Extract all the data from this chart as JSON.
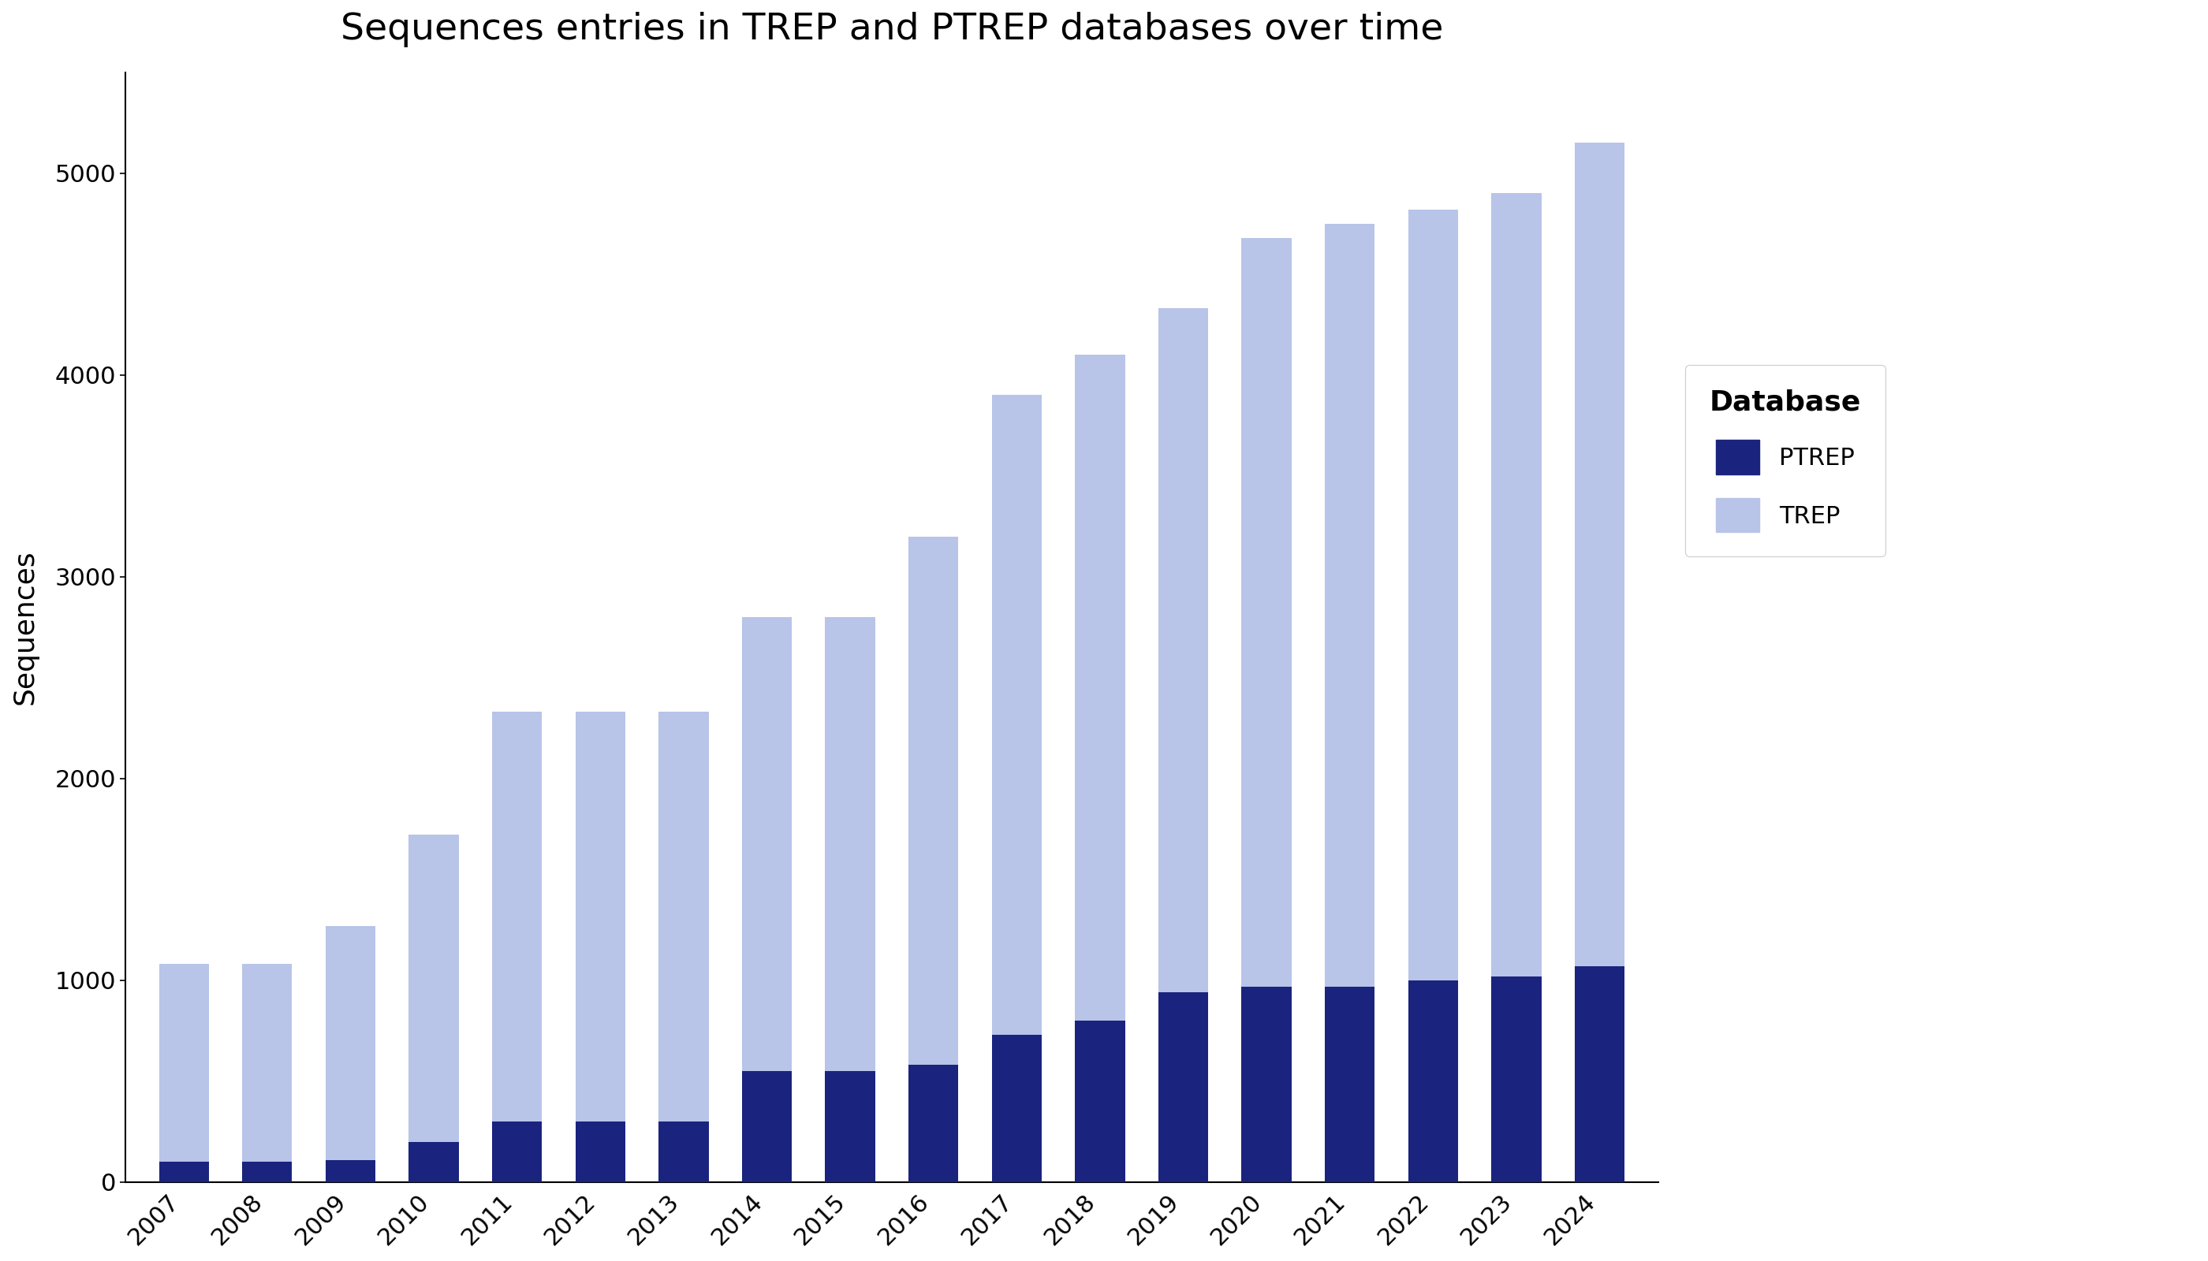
{
  "title": "Sequences entries in TREP and PTREP databases over time",
  "years": [
    "2007",
    "2008",
    "2009",
    "2010",
    "2011",
    "2012",
    "2013",
    "2014",
    "2015",
    "2016",
    "2017",
    "2018",
    "2019",
    "2020",
    "2021",
    "2022",
    "2023",
    "2024"
  ],
  "TREP": [
    1080,
    1080,
    1270,
    1720,
    2330,
    2330,
    2330,
    2800,
    2800,
    3200,
    3900,
    4100,
    4330,
    4680,
    4750,
    4820,
    4900,
    5150
  ],
  "PTREP": [
    100,
    100,
    110,
    200,
    300,
    300,
    300,
    550,
    550,
    580,
    730,
    800,
    940,
    970,
    970,
    1000,
    1020,
    1070
  ],
  "trep_color": "#b8c4e8",
  "ptrep_color": "#1a237e",
  "ylabel": "Sequences",
  "ylim": [
    0,
    5500
  ],
  "yticks": [
    0,
    1000,
    2000,
    3000,
    4000,
    5000
  ],
  "legend_title": "Database",
  "legend_labels": [
    "PTREP",
    "TREP"
  ],
  "background_color": "#ffffff",
  "title_fontsize": 34,
  "axis_label_fontsize": 26,
  "tick_fontsize": 22,
  "legend_fontsize": 22,
  "bar_width": 0.6
}
